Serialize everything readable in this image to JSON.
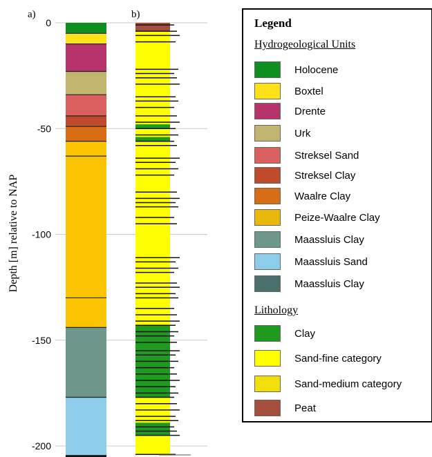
{
  "chart_data": {
    "type": "stratigraphic-column",
    "panel_a_label": "a)",
    "panel_b_label": "b)",
    "ylabel": "Depth [m] relative to NAP",
    "ylim": [
      0,
      205
    ],
    "y_ticks": [
      0,
      50,
      100,
      150,
      200
    ],
    "y_tick_labels": [
      "0",
      "-50",
      "-100",
      "-150",
      "-200"
    ],
    "grid": true,
    "column_a": [
      {
        "unit": "Holocene",
        "top": 0,
        "bottom": 5
      },
      {
        "unit": "Boxtel",
        "top": 5,
        "bottom": 10
      },
      {
        "unit": "Drente",
        "top": 10,
        "bottom": 23
      },
      {
        "unit": "Urk",
        "top": 23,
        "bottom": 34
      },
      {
        "unit": "Streksel Sand",
        "top": 34,
        "bottom": 44
      },
      {
        "unit": "Streksel Clay",
        "top": 44,
        "bottom": 49
      },
      {
        "unit": "Waalre Clay",
        "top": 49,
        "bottom": 56
      },
      {
        "unit": "Peize-Waalre Clay",
        "top": 56,
        "bottom": 144
      },
      {
        "unit": "Maassluis Clay",
        "top": 144,
        "bottom": 177
      },
      {
        "unit": "Maassluis Sand",
        "top": 177,
        "bottom": 205
      }
    ],
    "column_a_boundaries": [
      5,
      10,
      23,
      34,
      44,
      49,
      56,
      63,
      130,
      144,
      177,
      205
    ],
    "column_b": [
      {
        "lith": "Peat",
        "top": 0,
        "bottom": 4
      },
      {
        "lith": "Sand-fine category",
        "top": 4,
        "bottom": 48
      },
      {
        "lith": "Clay",
        "top": 48,
        "bottom": 50
      },
      {
        "lith": "Sand-fine category",
        "top": 50,
        "bottom": 54
      },
      {
        "lith": "Clay",
        "top": 54,
        "bottom": 56
      },
      {
        "lith": "Sand-fine category",
        "top": 56,
        "bottom": 143
      },
      {
        "lith": "Clay",
        "top": 143,
        "bottom": 177
      },
      {
        "lith": "Sand-fine category",
        "top": 177,
        "bottom": 189
      },
      {
        "lith": "Clay",
        "top": 189,
        "bottom": 195
      },
      {
        "lith": "Sand-fine category",
        "top": 195,
        "bottom": 204
      }
    ],
    "column_b_boundaries": [
      1,
      4,
      6,
      9,
      22,
      24,
      26,
      29,
      35,
      37,
      40,
      44,
      47,
      50,
      53,
      56,
      58,
      64,
      66,
      69,
      72,
      80,
      83,
      85,
      87,
      92,
      95,
      111,
      113,
      116,
      118,
      123,
      125,
      128,
      130,
      135,
      138,
      141,
      143,
      146,
      148,
      151,
      155,
      157,
      160,
      163,
      166,
      169,
      172,
      175,
      177,
      180,
      183,
      186,
      188,
      191,
      193,
      195,
      204
    ]
  },
  "legend": {
    "title": "Legend",
    "units_header": "Hydrogeological  Units",
    "units": [
      {
        "label": "Holocene",
        "color": "#0f8f1f"
      },
      {
        "label": "Boxtel",
        "color": "#ffe11a"
      },
      {
        "label": "Drente",
        "color": "#b7336b"
      },
      {
        "label": "Urk",
        "color": "#c2b56f"
      },
      {
        "label": "Streksel Sand",
        "color": "#d9605f"
      },
      {
        "label": "Streksel Clay",
        "color": "#bf4a2c"
      },
      {
        "label": "Waalre Clay",
        "color": "#d86d14"
      },
      {
        "label": "Peize-Waalre Clay",
        "color": "#e8b80a"
      },
      {
        "label": "Maassluis Clay",
        "color": "#6e978b"
      },
      {
        "label": "Maassluis Sand",
        "color": "#8ecdea"
      },
      {
        "label": "Maassluis Clay",
        "color": "#4a6f6c"
      }
    ],
    "lith_header": "Lithology",
    "lithology": [
      {
        "label": "Clay",
        "color": "#1e9a1e"
      },
      {
        "label": "Sand-fine category",
        "color": "#ffff00"
      },
      {
        "label": "Sand-medium  category",
        "color": "#f1de0a"
      },
      {
        "label": "Peat",
        "color": "#a44e3e"
      }
    ]
  },
  "colors": {
    "Holocene": "#0f8f1f",
    "Boxtel": "#ffe11a",
    "Drente": "#b7336b",
    "Urk": "#c2b56f",
    "Streksel Sand": "#d9605f",
    "Streksel Clay": "#bf4a2c",
    "Waalre Clay": "#d86d14",
    "Peize-Waalre Clay": "#fbc400",
    "Maassluis Clay": "#6e978b",
    "Maassluis Sand": "#8ecdea",
    "Clay": "#1e9a1e",
    "Sand-fine category": "#ffff00",
    "Peat": "#a44e3e"
  }
}
